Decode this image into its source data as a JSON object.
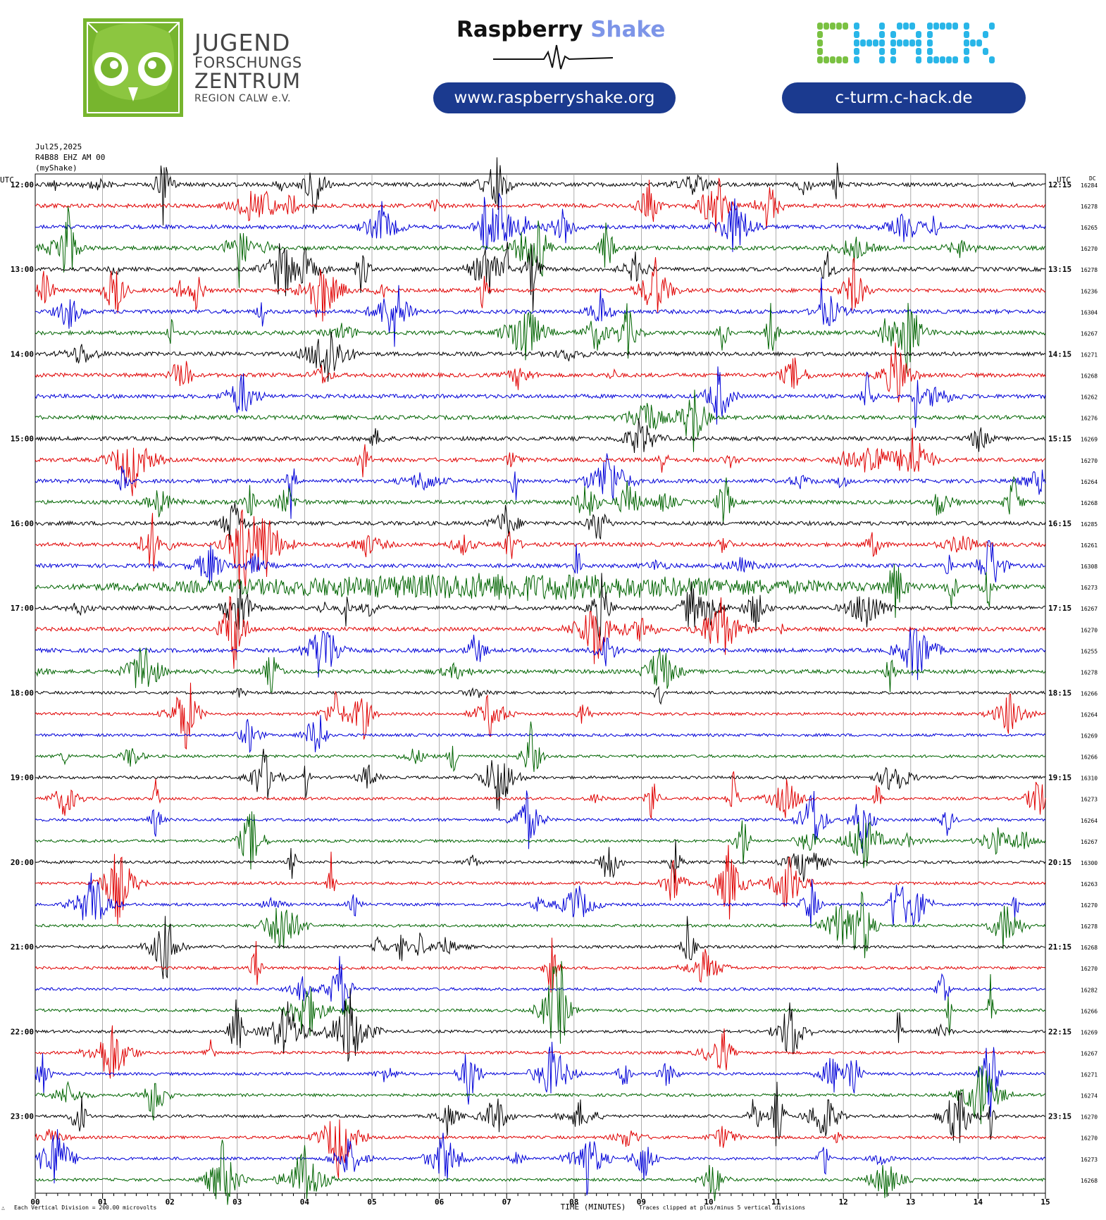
{
  "header": {
    "org_name": {
      "line1": "JUGEND",
      "line2": "FORSCHUNGS",
      "line3": "ZENTRUM",
      "line4": "REGION CALW e.V."
    },
    "rs_brand": {
      "part1": "Raspberry",
      "part2": "Shake"
    },
    "rs_url": "www.raspberryshake.org",
    "chack_logo_text": "CHACK",
    "chack_url": "c-turm.c-hack.de",
    "colors": {
      "jfz_green": "#77b52e",
      "pill_blue": "#1b3a8f",
      "shake_blue": "#7d95e8",
      "chack_green": "#7ac142",
      "chack_cyan": "#29b6e8"
    }
  },
  "plot_meta": {
    "date": "Jul25,2025",
    "station": "R4B88 EHZ AM 00",
    "source": "(myShake)",
    "left_axis_label": "UTC",
    "right_axis_label": "UTC",
    "dc_label": "DC",
    "x_axis_title": "TIME (MINUTES)",
    "scale_note": "Each Vertical Division =  200.00 microvolts",
    "clip_note": "Traces clipped at plus/minus 5 vertical divisions",
    "corner_mark": "∴"
  },
  "chart_data": {
    "type": "line",
    "xlabel": "TIME (MINUTES)",
    "xlim": [
      0,
      15
    ],
    "x_ticks": [
      "00",
      "01",
      "02",
      "03",
      "04",
      "05",
      "06",
      "07",
      "08",
      "09",
      "10",
      "11",
      "12",
      "13",
      "14",
      "15"
    ],
    "trace_colors": [
      "#000000",
      "#e00000",
      "#0000d8",
      "#006400"
    ],
    "left_hour_labels": [
      "12:00",
      "13:00",
      "14:00",
      "15:00",
      "16:00",
      "17:00",
      "18:00",
      "19:00",
      "20:00",
      "21:00",
      "22:00",
      "23:00"
    ],
    "right_hour_labels": [
      "12:15",
      "13:15",
      "14:15",
      "15:15",
      "16:15",
      "17:15",
      "18:15",
      "19:15",
      "20:15",
      "21:15",
      "22:15",
      "23:15"
    ],
    "dc_offsets": [
      16284,
      16278,
      16265,
      16270,
      16278,
      16236,
      16304,
      16267,
      16271,
      16268,
      16262,
      16276,
      16269,
      16270,
      16264,
      16268,
      16285,
      16261,
      16308,
      16273,
      16267,
      16270,
      16255,
      16278,
      16266,
      16264,
      16269,
      16266,
      16310,
      16273,
      16264,
      16267,
      16300,
      16263,
      16270,
      16278,
      16268,
      16270,
      16282,
      16266,
      16269,
      16267,
      16271,
      16274,
      16270,
      16270,
      16273,
      16268
    ]
  }
}
